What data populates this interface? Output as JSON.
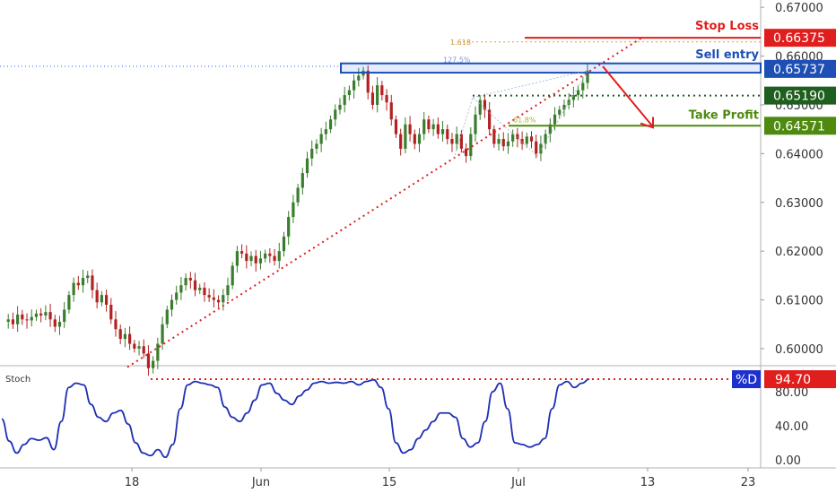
{
  "chart_data": {
    "type": "candlestick",
    "x_tick_labels": [
      "18",
      "Jun",
      "15",
      "Jul",
      "13",
      "23"
    ],
    "y_tick_labels": [
      "0.67000",
      "0.66000",
      "0.65000",
      "0.64000",
      "0.63000",
      "0.62000",
      "0.61000",
      "0.60000"
    ],
    "ylim": [
      0.5965,
      0.6715
    ],
    "annotations": {
      "stop_loss": {
        "label": "Stop Loss",
        "value": "0.66375",
        "color": "#e01e1e"
      },
      "sell_entry": {
        "label": "Sell entry",
        "value": "0.65737",
        "color": "#1d4fb5"
      },
      "mid_level": {
        "value": "0.65190",
        "color": "#1e5e1e"
      },
      "take_profit": {
        "label": "Take Profit",
        "value": "0.64571",
        "color": "#4f8a10"
      },
      "fib_1618": "1.618",
      "fib_127": "127.5%",
      "fib_small": "61.8%"
    },
    "candle_colors": {
      "up": "#3a7d2e",
      "down": "#b22222"
    },
    "price_path": [
      0.6055,
      0.606,
      0.605,
      0.607,
      0.606,
      0.6058,
      0.6065,
      0.6072,
      0.6068,
      0.6075,
      0.606,
      0.6045,
      0.6055,
      0.608,
      0.611,
      0.6135,
      0.613,
      0.6145,
      0.615,
      0.612,
      0.6095,
      0.611,
      0.609,
      0.606,
      0.604,
      0.602,
      0.603,
      0.601,
      0.6,
      0.6005,
      0.599,
      0.596,
      0.5975,
      0.601,
      0.605,
      0.608,
      0.61,
      0.6115,
      0.613,
      0.6145,
      0.614,
      0.612,
      0.6125,
      0.611,
      0.6105,
      0.61,
      0.6095,
      0.611,
      0.613,
      0.617,
      0.62,
      0.6195,
      0.618,
      0.619,
      0.6175,
      0.6185,
      0.6195,
      0.619,
      0.618,
      0.62,
      0.623,
      0.627,
      0.63,
      0.633,
      0.636,
      0.639,
      0.641,
      0.642,
      0.644,
      0.645,
      0.647,
      0.649,
      0.65,
      0.652,
      0.653,
      0.655,
      0.656,
      0.657,
      0.6525,
      0.65,
      0.654,
      0.652,
      0.6505,
      0.647,
      0.644,
      0.641,
      0.646,
      0.644,
      0.642,
      0.644,
      0.647,
      0.645,
      0.646,
      0.644,
      0.645,
      0.643,
      0.642,
      0.644,
      0.641,
      0.6395,
      0.644,
      0.648,
      0.651,
      0.649,
      0.645,
      0.642,
      0.643,
      0.6415,
      0.6425,
      0.644,
      0.643,
      0.642,
      0.6435,
      0.6425,
      0.64,
      0.642,
      0.644,
      0.646,
      0.648,
      0.649,
      0.65,
      0.651,
      0.652,
      0.653,
      0.6545,
      0.657
    ],
    "stoch": {
      "label": "Stoch",
      "series_label": "%D",
      "value": "94.70",
      "y_tick_labels": [
        "80.00",
        "40.00",
        "0.00"
      ],
      "ylim": [
        0,
        100
      ],
      "values": [
        48,
        22,
        8,
        18,
        25,
        23,
        26,
        12,
        45,
        85,
        90,
        88,
        65,
        50,
        45,
        55,
        58,
        42,
        20,
        8,
        5,
        12,
        3,
        18,
        60,
        88,
        92,
        90,
        88,
        85,
        62,
        50,
        45,
        55,
        70,
        88,
        90,
        78,
        70,
        65,
        75,
        82,
        90,
        92,
        90,
        91,
        90,
        92,
        88,
        92,
        94,
        85,
        60,
        20,
        8,
        12,
        25,
        35,
        45,
        55,
        55,
        50,
        25,
        15,
        20,
        45,
        80,
        90,
        60,
        20,
        18,
        15,
        18,
        25,
        60,
        88,
        92,
        85,
        90,
        94.7
      ]
    }
  }
}
